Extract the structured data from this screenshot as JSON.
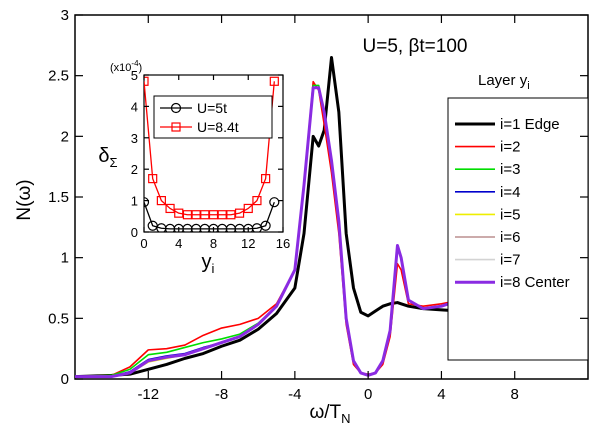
{
  "chart_data": {
    "type": "line",
    "annotation": "U=5, βt=100",
    "x_label": "ω/T",
    "x_label_sub": "N",
    "y_label": "N(ω)",
    "legend_title": "Layer y",
    "legend_title_sub": "i",
    "xlim": [
      -16,
      12
    ],
    "ylim": [
      0,
      3
    ],
    "xticks": [
      -12,
      -8,
      -4,
      0,
      4,
      8
    ],
    "yticks": [
      0,
      0.5,
      1,
      1.5,
      2,
      2.5,
      3
    ],
    "x": [
      -16,
      -14,
      -13,
      -12,
      -11,
      -10,
      -9,
      -8,
      -7,
      -6,
      -5,
      -4,
      -3.5,
      -3,
      -2.7,
      -2.4,
      -2,
      -1.6,
      -1.2,
      -0.8,
      -0.4,
      0,
      0.4,
      0.8,
      1.2,
      1.6,
      1.8,
      2.2,
      3,
      4,
      5,
      6,
      6.5,
      7,
      8,
      9,
      10,
      11,
      12
    ],
    "series": [
      {
        "name": "i=1 Edge",
        "color": "#000000",
        "width": 3,
        "values": [
          0.02,
          0.03,
          0.04,
          0.08,
          0.12,
          0.17,
          0.21,
          0.27,
          0.32,
          0.41,
          0.54,
          0.75,
          1.2,
          2.0,
          1.92,
          2.05,
          2.65,
          2.2,
          1.2,
          0.75,
          0.55,
          0.52,
          0.56,
          0.6,
          0.62,
          0.63,
          0.62,
          0.6,
          0.58,
          0.57,
          0.56,
          0.56,
          0.56,
          0.55,
          0.55,
          0.52,
          0.5,
          0.48,
          0.45
        ]
      },
      {
        "name": "i=2",
        "color": "#ff0000",
        "width": 1.6,
        "values": [
          0.02,
          0.03,
          0.1,
          0.24,
          0.25,
          0.28,
          0.36,
          0.42,
          0.45,
          0.5,
          0.62,
          0.9,
          1.6,
          2.45,
          2.38,
          2.1,
          1.7,
          1.2,
          0.45,
          0.12,
          0.05,
          0.04,
          0.05,
          0.12,
          0.35,
          0.95,
          0.9,
          0.62,
          0.6,
          0.62,
          0.65,
          0.68,
          0.7,
          0.67,
          0.58,
          0.52,
          0.5,
          0.47,
          0.45
        ]
      },
      {
        "name": "i=3",
        "color": "#00dd00",
        "width": 1.6,
        "values": [
          0.02,
          0.03,
          0.08,
          0.2,
          0.22,
          0.26,
          0.3,
          0.33,
          0.37,
          0.46,
          0.6,
          0.9,
          1.6,
          2.42,
          2.42,
          2.2,
          1.8,
          1.3,
          0.5,
          0.15,
          0.05,
          0.03,
          0.05,
          0.15,
          0.4,
          1.1,
          1.0,
          0.65,
          0.58,
          0.6,
          0.65,
          0.72,
          0.76,
          0.72,
          0.6,
          0.52,
          0.46,
          0.42,
          0.38
        ]
      },
      {
        "name": "i=4",
        "color": "#0000cc",
        "width": 1.6,
        "values": [
          0.02,
          0.02,
          0.06,
          0.16,
          0.19,
          0.21,
          0.26,
          0.3,
          0.35,
          0.45,
          0.6,
          0.9,
          1.6,
          2.4,
          2.4,
          2.2,
          1.8,
          1.3,
          0.5,
          0.15,
          0.05,
          0.03,
          0.05,
          0.15,
          0.4,
          1.1,
          1.0,
          0.65,
          0.58,
          0.6,
          0.65,
          0.72,
          0.75,
          0.7,
          0.58,
          0.52,
          0.48,
          0.45,
          0.42
        ]
      },
      {
        "name": "i=5",
        "color": "#eeee00",
        "width": 1.6,
        "values": [
          0.02,
          0.02,
          0.05,
          0.14,
          0.17,
          0.2,
          0.25,
          0.3,
          0.35,
          0.45,
          0.6,
          0.9,
          1.6,
          2.4,
          2.4,
          2.2,
          1.8,
          1.3,
          0.5,
          0.15,
          0.05,
          0.03,
          0.05,
          0.15,
          0.4,
          1.1,
          1.0,
          0.65,
          0.58,
          0.6,
          0.65,
          0.72,
          0.75,
          0.7,
          0.58,
          0.52,
          0.48,
          0.45,
          0.42
        ]
      },
      {
        "name": "i=6",
        "color": "#bc8f8f",
        "width": 1.6,
        "values": [
          0.02,
          0.02,
          0.05,
          0.15,
          0.18,
          0.2,
          0.25,
          0.3,
          0.35,
          0.45,
          0.6,
          0.9,
          1.6,
          2.4,
          2.4,
          2.2,
          1.8,
          1.3,
          0.5,
          0.15,
          0.05,
          0.03,
          0.05,
          0.15,
          0.4,
          1.1,
          1.0,
          0.65,
          0.58,
          0.6,
          0.65,
          0.72,
          0.75,
          0.7,
          0.58,
          0.52,
          0.48,
          0.45,
          0.42
        ]
      },
      {
        "name": "i=7",
        "color": "#d3d3d3",
        "width": 1.6,
        "values": [
          0.02,
          0.02,
          0.05,
          0.15,
          0.18,
          0.2,
          0.25,
          0.3,
          0.35,
          0.45,
          0.6,
          0.9,
          1.6,
          2.4,
          2.4,
          2.2,
          1.8,
          1.3,
          0.5,
          0.15,
          0.05,
          0.03,
          0.05,
          0.15,
          0.4,
          1.1,
          1.0,
          0.65,
          0.58,
          0.6,
          0.65,
          0.72,
          0.75,
          0.7,
          0.58,
          0.52,
          0.48,
          0.45,
          0.42
        ]
      },
      {
        "name": "i=8 Center",
        "color": "#8a2be2",
        "width": 3,
        "values": [
          0.02,
          0.02,
          0.05,
          0.15,
          0.18,
          0.2,
          0.25,
          0.3,
          0.35,
          0.45,
          0.6,
          0.9,
          1.6,
          2.4,
          2.4,
          2.2,
          1.8,
          1.3,
          0.5,
          0.15,
          0.05,
          0.03,
          0.05,
          0.15,
          0.4,
          1.1,
          1.0,
          0.65,
          0.58,
          0.6,
          0.65,
          0.72,
          0.75,
          0.7,
          0.58,
          0.52,
          0.48,
          0.45,
          0.42
        ]
      }
    ],
    "inset": {
      "type": "line",
      "y_label": "δ",
      "y_label_sub": "Σ",
      "x_label": "y",
      "x_label_sub": "i",
      "multiplier": "(x10",
      "multiplier_sup": "-4",
      "multiplier_end": ")",
      "xlim": [
        0,
        16
      ],
      "ylim": [
        0,
        5
      ],
      "xticks": [
        0,
        4,
        8,
        12,
        16
      ],
      "yticks": [
        0,
        1,
        2,
        3,
        4,
        5
      ],
      "x": [
        0,
        1,
        2,
        3,
        4,
        5,
        6,
        7,
        8,
        9,
        10,
        11,
        12,
        13,
        14,
        15
      ],
      "series": [
        {
          "name": "U=5t",
          "color": "#000000",
          "marker": "circle",
          "values": [
            0.95,
            0.2,
            0.12,
            0.1,
            0.1,
            0.1,
            0.1,
            0.1,
            0.1,
            0.1,
            0.1,
            0.1,
            0.1,
            0.12,
            0.2,
            0.95
          ]
        },
        {
          "name": "U=8.4t",
          "color": "#ff0000",
          "marker": "square",
          "values": [
            4.8,
            1.7,
            1.0,
            0.75,
            0.6,
            0.55,
            0.55,
            0.55,
            0.55,
            0.55,
            0.55,
            0.6,
            0.75,
            1.0,
            1.7,
            4.8
          ]
        }
      ]
    }
  }
}
